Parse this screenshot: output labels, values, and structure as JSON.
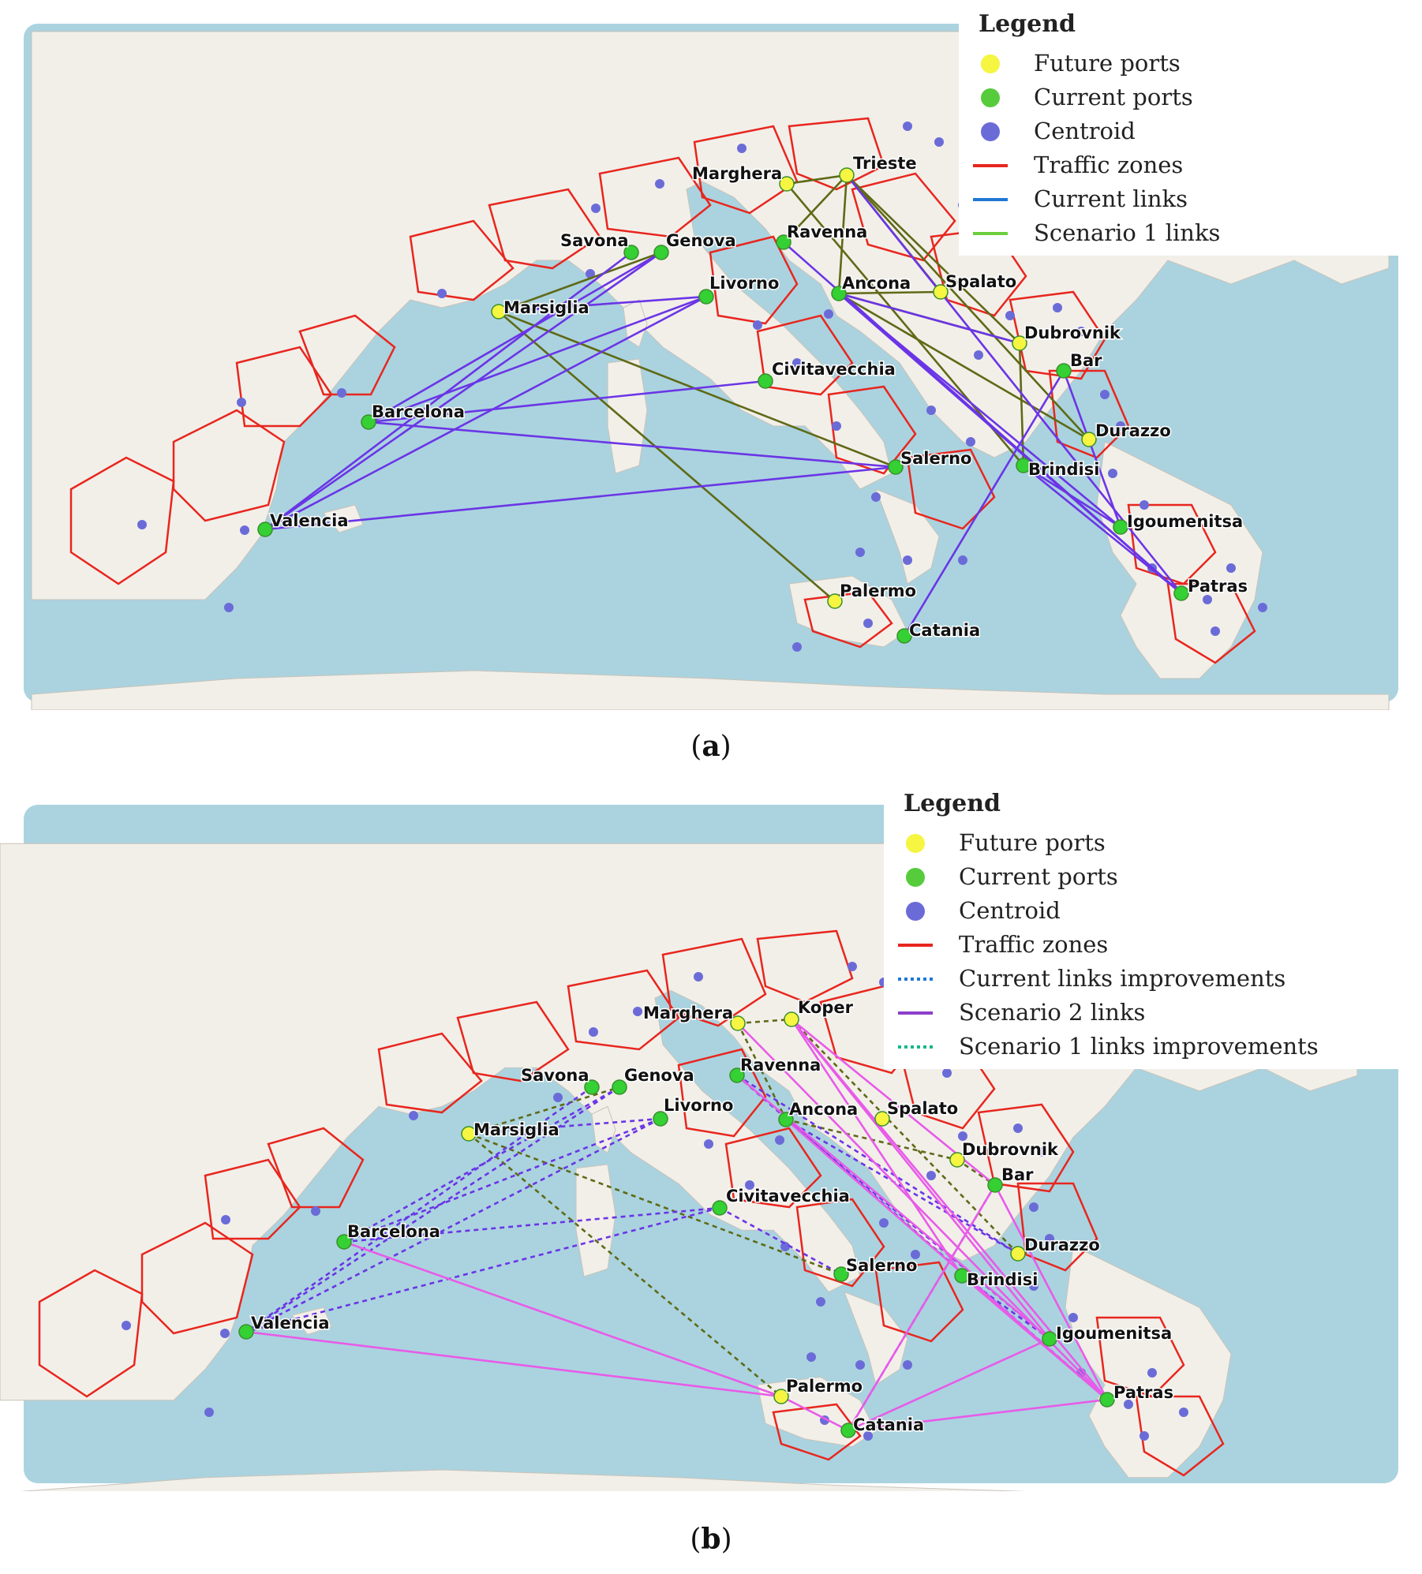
{
  "colors": {
    "sea": "#aad3df",
    "land": "#f2efe9",
    "zone_border": "#e8261e",
    "future_port": "#f5f542",
    "current_port": "#34d034",
    "centroid": "#6b6bd8",
    "current_link": "#6b35e6",
    "scenario1_link": "#5f6a17",
    "scenario2_link": "#e85be8",
    "legend_current_links": "#1f77d4",
    "legend_scenario1": "#6bcf3c",
    "legend_scenario2": "#8b3fc9",
    "legend_scenario1_improve": "#14b88a"
  },
  "panels": [
    {
      "caption": "a",
      "legend": {
        "title": "Legend",
        "items": [
          {
            "label": "Future ports",
            "symbol": "dot",
            "color": "#f5f542"
          },
          {
            "label": "Current ports",
            "symbol": "dot",
            "color": "#56cc3c"
          },
          {
            "label": "Centroid",
            "symbol": "dot",
            "color": "#6b6bd8"
          },
          {
            "label": "Traffic zones",
            "symbol": "line",
            "color": "#e8261e"
          },
          {
            "label": "Current links",
            "symbol": "line",
            "color": "#1f77d4"
          },
          {
            "label": "Scenario 1 links",
            "symbol": "line",
            "color": "#6bcf3c"
          }
        ]
      },
      "ports": [
        {
          "name": "Marghera",
          "status": "future",
          "icon": "port-dot"
        },
        {
          "name": "Trieste",
          "status": "future",
          "icon": "port-dot"
        },
        {
          "name": "Savona",
          "status": "current",
          "icon": "port-dot"
        },
        {
          "name": "Genova",
          "status": "current",
          "icon": "port-dot"
        },
        {
          "name": "Ravenna",
          "status": "current",
          "icon": "port-dot"
        },
        {
          "name": "Marsiglia",
          "status": "future",
          "icon": "port-dot"
        },
        {
          "name": "Livorno",
          "status": "current",
          "icon": "port-dot"
        },
        {
          "name": "Ancona",
          "status": "current",
          "icon": "port-dot"
        },
        {
          "name": "Spalato",
          "status": "future",
          "icon": "port-dot"
        },
        {
          "name": "Dubrovnik",
          "status": "future",
          "icon": "port-dot"
        },
        {
          "name": "Bar",
          "status": "current",
          "icon": "port-dot"
        },
        {
          "name": "Civitavecchia",
          "status": "current",
          "icon": "port-dot"
        },
        {
          "name": "Barcelona",
          "status": "current",
          "icon": "port-dot"
        },
        {
          "name": "Durazzo",
          "status": "future",
          "icon": "port-dot"
        },
        {
          "name": "Salerno",
          "status": "current",
          "icon": "port-dot"
        },
        {
          "name": "Brindisi",
          "status": "current",
          "icon": "port-dot"
        },
        {
          "name": "Valencia",
          "status": "current",
          "icon": "port-dot"
        },
        {
          "name": "Igoumenitsa",
          "status": "current",
          "icon": "port-dot"
        },
        {
          "name": "Palermo",
          "status": "future",
          "icon": "port-dot"
        },
        {
          "name": "Patras",
          "status": "current",
          "icon": "port-dot"
        },
        {
          "name": "Catania",
          "status": "current",
          "icon": "port-dot"
        }
      ]
    },
    {
      "caption": "b",
      "legend": {
        "title": "Legend",
        "items": [
          {
            "label": "Future ports",
            "symbol": "dot",
            "color": "#f5f542"
          },
          {
            "label": "Current ports",
            "symbol": "dot",
            "color": "#56cc3c"
          },
          {
            "label": "Centroid",
            "symbol": "dot",
            "color": "#6b6bd8"
          },
          {
            "label": "Traffic zones",
            "symbol": "line",
            "color": "#e8261e"
          },
          {
            "label": "Current links improvements",
            "symbol": "dotted",
            "color": "#1f77d4"
          },
          {
            "label": "Scenario 2 links",
            "symbol": "line",
            "color": "#8b3fc9"
          },
          {
            "label": "Scenario 1 links improvements",
            "symbol": "dotted",
            "color": "#14b88a"
          }
        ]
      },
      "ports": [
        {
          "name": "Marghera",
          "status": "future",
          "icon": "port-dot"
        },
        {
          "name": "Koper",
          "status": "future",
          "icon": "port-dot"
        },
        {
          "name": "Savona",
          "status": "current",
          "icon": "port-dot"
        },
        {
          "name": "Genova",
          "status": "current",
          "icon": "port-dot"
        },
        {
          "name": "Ravenna",
          "status": "current",
          "icon": "port-dot"
        },
        {
          "name": "Marsiglia",
          "status": "future",
          "icon": "port-dot"
        },
        {
          "name": "Livorno",
          "status": "current",
          "icon": "port-dot"
        },
        {
          "name": "Ancona",
          "status": "current",
          "icon": "port-dot"
        },
        {
          "name": "Spalato",
          "status": "future",
          "icon": "port-dot"
        },
        {
          "name": "Dubrovnik",
          "status": "future",
          "icon": "port-dot"
        },
        {
          "name": "Bar",
          "status": "current",
          "icon": "port-dot"
        },
        {
          "name": "Civitavecchia",
          "status": "current",
          "icon": "port-dot"
        },
        {
          "name": "Barcelona",
          "status": "current",
          "icon": "port-dot"
        },
        {
          "name": "Durazzo",
          "status": "future",
          "icon": "port-dot"
        },
        {
          "name": "Salerno",
          "status": "current",
          "icon": "port-dot"
        },
        {
          "name": "Brindisi",
          "status": "current",
          "icon": "port-dot"
        },
        {
          "name": "Valencia",
          "status": "current",
          "icon": "port-dot"
        },
        {
          "name": "Igoumenitsa",
          "status": "current",
          "icon": "port-dot"
        },
        {
          "name": "Palermo",
          "status": "future",
          "icon": "port-dot"
        },
        {
          "name": "Patras",
          "status": "current",
          "icon": "port-dot"
        },
        {
          "name": "Catania",
          "status": "current",
          "icon": "port-dot"
        }
      ]
    }
  ]
}
